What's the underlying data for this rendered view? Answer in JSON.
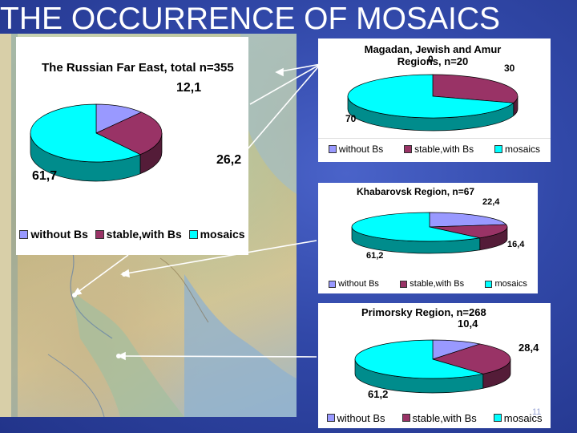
{
  "slide": {
    "title": "THE OCCURRENCE OF MOSAICS",
    "number": "11"
  },
  "colors": {
    "without_bs": "#9999ff",
    "stable_with_bs": "#993366",
    "mosaics": "#00ffff",
    "map_tint": "#c8b98a"
  },
  "map": {
    "icon": "regional-map-image"
  },
  "legend_labels": [
    "without Bs",
    "stable,with Bs",
    "mosaics"
  ],
  "chart_data": [
    {
      "type": "pie",
      "title": "The Russian Far East, total n=355",
      "categories": [
        "without Bs",
        "stable,with Bs",
        "mosaics"
      ],
      "values": [
        12.1,
        26.2,
        61.7
      ],
      "labels": [
        "12,1",
        "26,2",
        "61,7"
      ],
      "legend": "bottom"
    },
    {
      "type": "pie",
      "title": "Magadan, Jewish and Amur Regions, n=20",
      "categories": [
        "without Bs",
        "stable,with Bs",
        "mosaics"
      ],
      "values": [
        0,
        30,
        70
      ],
      "labels": [
        "0",
        "30",
        "70"
      ],
      "legend": "bottom"
    },
    {
      "type": "pie",
      "title": "Khabarovsk Region, n=67",
      "categories": [
        "without Bs",
        "stable,with Bs",
        "mosaics"
      ],
      "values": [
        22.4,
        16.4,
        61.2
      ],
      "labels": [
        "22,4",
        "16,4",
        "61,2"
      ],
      "legend": "bottom"
    },
    {
      "type": "pie",
      "title": "Primorsky Region, n=268",
      "categories": [
        "without Bs",
        "stable,with Bs",
        "mosaics"
      ],
      "values": [
        10.4,
        28.4,
        61.2
      ],
      "labels": [
        "10,4",
        "28,4",
        "61,2"
      ],
      "legend": "bottom"
    }
  ]
}
